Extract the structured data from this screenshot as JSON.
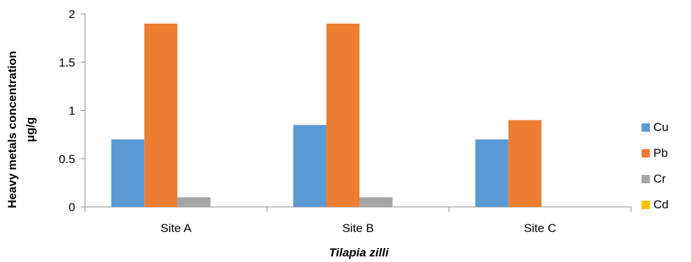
{
  "chart_data": {
    "type": "bar",
    "title": "",
    "categories": [
      "Site A",
      "Site B",
      "Site C"
    ],
    "series": [
      {
        "name": "Cu",
        "values": [
          0.7,
          0.85,
          0.7
        ],
        "color": "#5B9BD5"
      },
      {
        "name": "Pb",
        "values": [
          1.9,
          1.9,
          0.9
        ],
        "color": "#ED7D31"
      },
      {
        "name": "Cr",
        "values": [
          0.1,
          0.1,
          0
        ],
        "color": "#A5A5A5"
      },
      {
        "name": "Cd",
        "values": [
          0,
          0,
          0
        ],
        "color": "#FFC000"
      }
    ],
    "ylabel_line1": "Heavy metals concentration",
    "ylabel_line2": "μg/g",
    "xlabel": "Tilapia zilli",
    "ylim": [
      0,
      2
    ],
    "yticks": [
      "0",
      "0.5",
      "1",
      "1.5",
      "2"
    ],
    "legend_position": "right",
    "grid": false
  }
}
